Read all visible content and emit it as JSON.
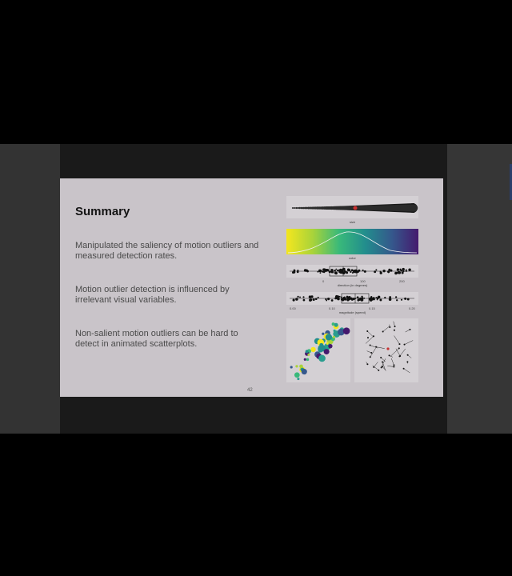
{
  "slide": {
    "title": "Summary",
    "bullets": [
      "Manipulated the saliency of motion outliers and measured detection rates.",
      "Motion outlier detection is influenced by irrelevant visual variables.",
      "Non-salient motion outliers can be hard to detect in animated scatterplots."
    ],
    "page_number": "42"
  },
  "figures": {
    "size_caption": "size",
    "color_caption": "color",
    "direction_caption": "direction (in degrees)",
    "direction_ticks": [
      "0",
      "100",
      "200"
    ],
    "magnitude_caption": "magnitude (speed)",
    "magnitude_ticks": [
      "0.00",
      "0.10",
      "0.15",
      "0.20"
    ]
  },
  "colors": {
    "slide_bg": "#c9c4c9",
    "video_bg": "#1a1a1a",
    "outlier_red": "#c83232"
  }
}
